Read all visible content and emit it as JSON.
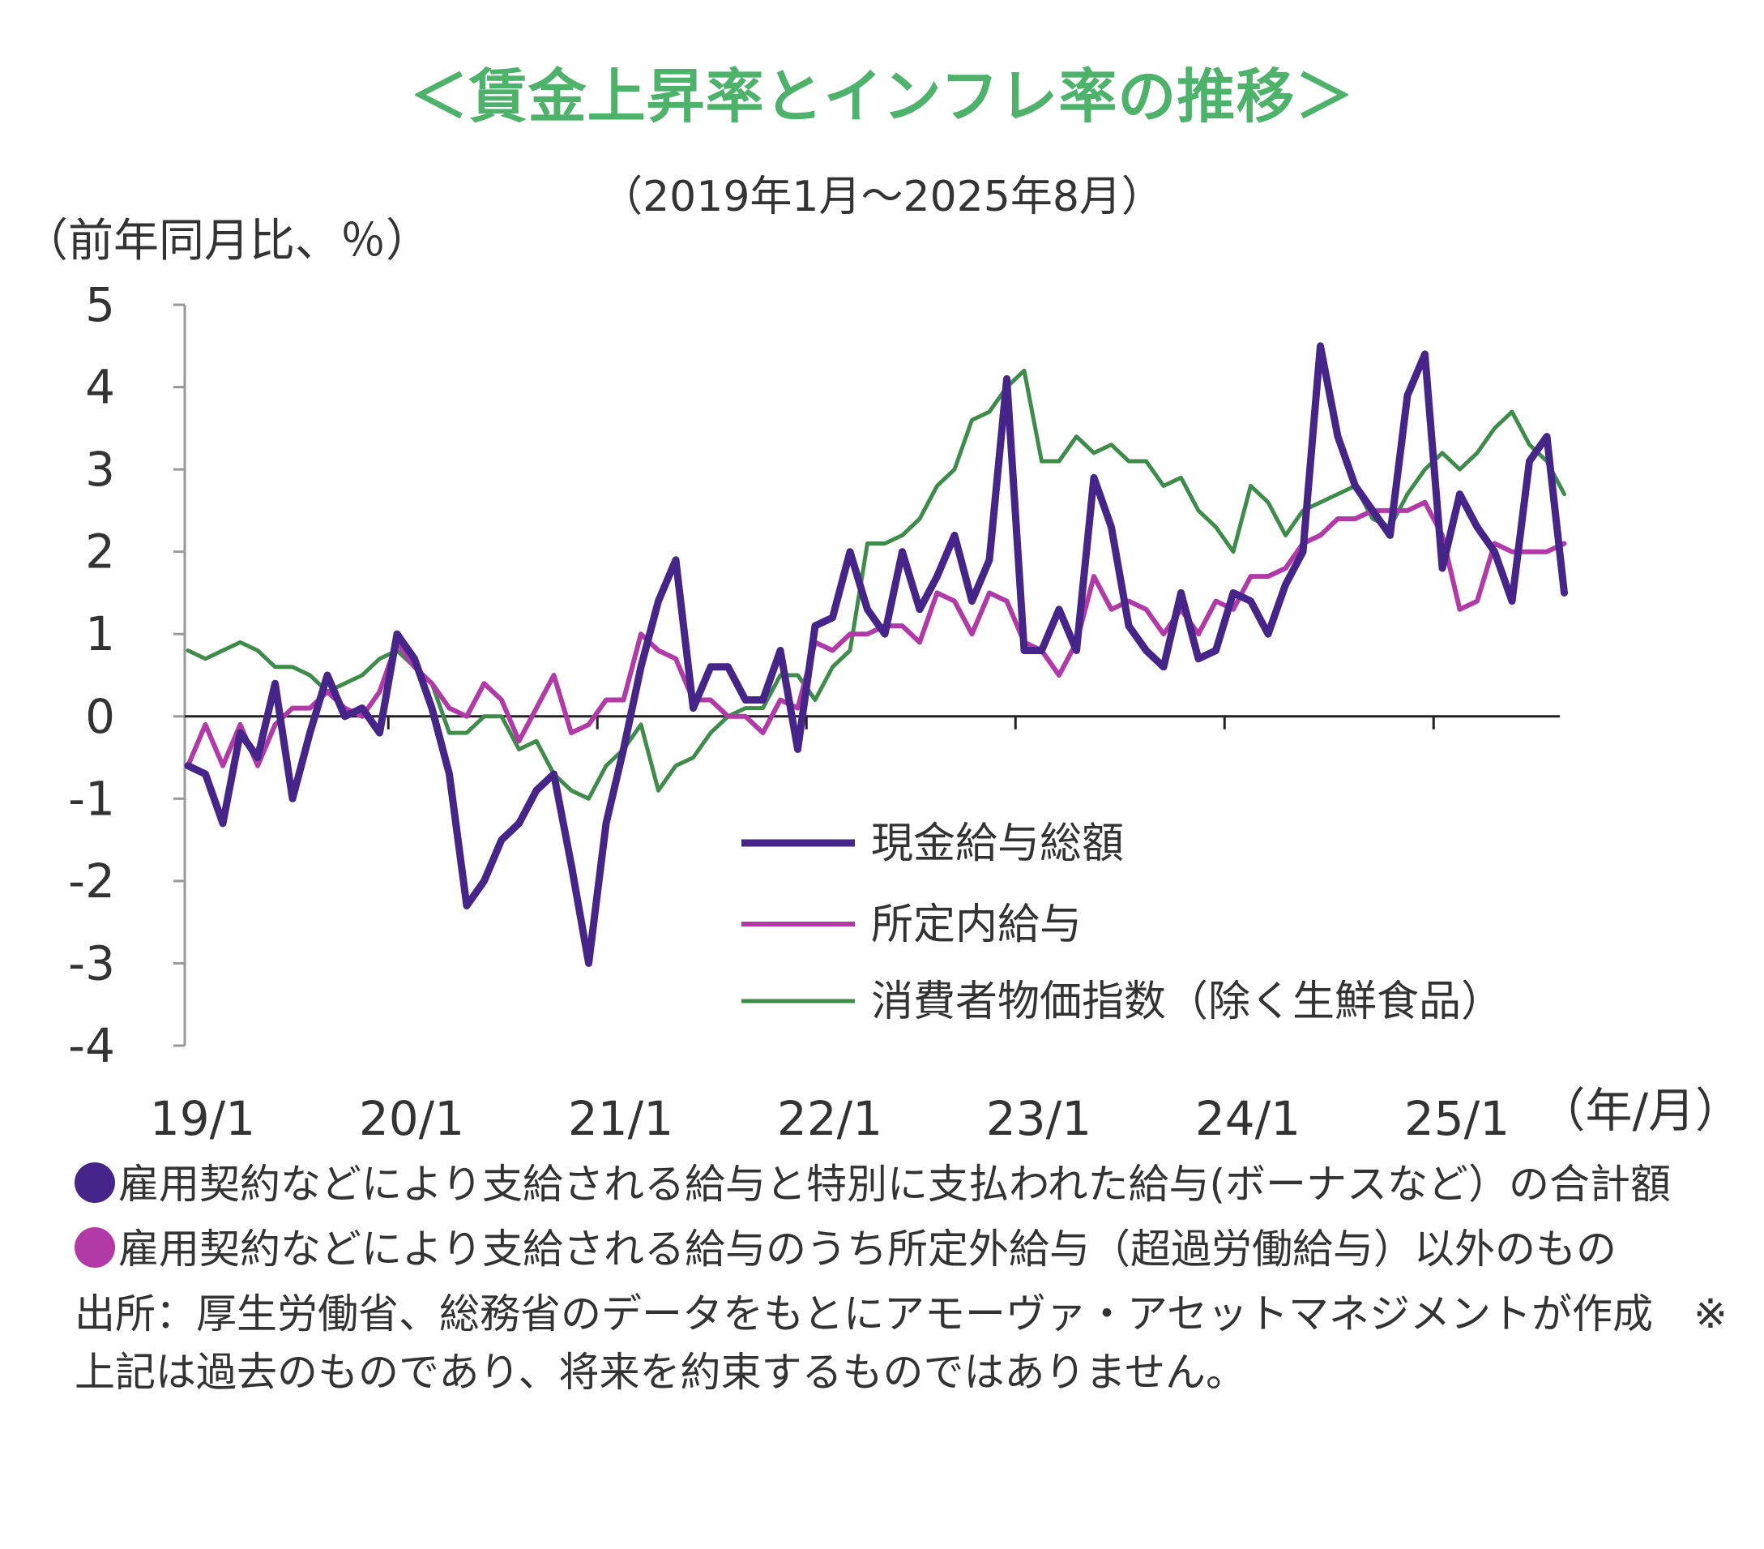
{
  "title": "＜賃金上昇率とインフレ率の推移＞",
  "subtitle": "（2019年1月～2025年8月）",
  "unit_label": "（前年同月比、％）",
  "colors": {
    "title": "#4db36b",
    "wage_total": "#45258a",
    "scheduled": "#b23aa8",
    "cpi": "#3d8c4a",
    "axis": "#999999"
  },
  "chart_data": {
    "type": "line",
    "xlabel": "（年/月）",
    "ylabel": "（前年同月比、％）",
    "ylim": [
      -4,
      5
    ],
    "yticks": [
      "5",
      "4",
      "3",
      "2",
      "1",
      "0",
      "-1",
      "-2",
      "-3",
      "-4"
    ],
    "xtick_labels": [
      "19/1",
      "20/1",
      "21/1",
      "22/1",
      "23/1",
      "24/1",
      "25/1"
    ],
    "x_start": "2019/1",
    "x_end": "2025/8",
    "legend_position": "center-right",
    "series": [
      {
        "name": "現金給与総額",
        "color": "#45258a",
        "values": [
          -0.6,
          -0.7,
          -1.3,
          -0.2,
          -0.5,
          0.4,
          -1.0,
          -0.2,
          0.5,
          0.0,
          0.1,
          -0.2,
          1.0,
          0.7,
          0.1,
          -0.7,
          -2.3,
          -2.0,
          -1.5,
          -1.3,
          -0.9,
          -0.7,
          -1.8,
          -3.0,
          -1.3,
          -0.4,
          0.6,
          1.4,
          1.9,
          0.1,
          0.6,
          0.6,
          0.2,
          0.2,
          0.8,
          -0.4,
          1.1,
          1.2,
          2.0,
          1.3,
          1.0,
          2.0,
          1.3,
          1.7,
          2.2,
          1.4,
          1.9,
          4.1,
          0.8,
          0.8,
          1.3,
          0.8,
          2.9,
          2.3,
          1.1,
          0.8,
          0.6,
          1.5,
          0.7,
          0.8,
          1.5,
          1.4,
          1.0,
          1.6,
          2.0,
          4.5,
          3.4,
          2.8,
          2.5,
          2.2,
          3.9,
          4.4,
          1.8,
          2.7,
          2.3,
          2.0,
          1.4,
          3.1,
          3.4,
          1.5
        ]
      },
      {
        "name": "所定内給与",
        "color": "#b23aa8",
        "values": [
          -0.6,
          -0.1,
          -0.6,
          -0.1,
          -0.6,
          -0.1,
          0.1,
          0.1,
          0.3,
          0.1,
          0.0,
          0.3,
          0.9,
          0.6,
          0.4,
          0.1,
          0.0,
          0.4,
          0.2,
          -0.3,
          0.1,
          0.5,
          -0.2,
          -0.1,
          0.2,
          0.2,
          1.0,
          0.8,
          0.7,
          0.2,
          0.2,
          0.0,
          0.0,
          -0.2,
          0.2,
          0.1,
          0.9,
          0.8,
          1.0,
          1.0,
          1.1,
          1.1,
          0.9,
          1.5,
          1.4,
          1.0,
          1.5,
          1.4,
          0.9,
          0.8,
          0.5,
          0.9,
          1.7,
          1.3,
          1.4,
          1.3,
          1.0,
          1.3,
          1.0,
          1.4,
          1.3,
          1.7,
          1.7,
          1.8,
          2.1,
          2.2,
          2.4,
          2.4,
          2.5,
          2.5,
          2.5,
          2.6,
          2.2,
          1.3,
          1.4,
          2.1,
          2.0,
          2.0,
          2.0,
          2.1
        ]
      },
      {
        "name": "消費者物価指数（除く生鮮食品）",
        "color": "#3d8c4a",
        "values": [
          0.8,
          0.7,
          0.8,
          0.9,
          0.8,
          0.6,
          0.6,
          0.5,
          0.3,
          0.4,
          0.5,
          0.7,
          0.8,
          0.6,
          0.4,
          -0.2,
          -0.2,
          0.0,
          0.0,
          -0.4,
          -0.3,
          -0.7,
          -0.9,
          -1.0,
          -0.6,
          -0.4,
          -0.1,
          -0.9,
          -0.6,
          -0.5,
          -0.2,
          0.0,
          0.1,
          0.1,
          0.5,
          0.5,
          0.2,
          0.6,
          0.8,
          2.1,
          2.1,
          2.2,
          2.4,
          2.8,
          3.0,
          3.6,
          3.7,
          4.0,
          4.2,
          3.1,
          3.1,
          3.4,
          3.2,
          3.3,
          3.1,
          3.1,
          2.8,
          2.9,
          2.5,
          2.3,
          2.0,
          2.8,
          2.6,
          2.2,
          2.5,
          2.6,
          2.7,
          2.8,
          2.4,
          2.3,
          2.7,
          3.0,
          3.2,
          3.0,
          3.2,
          3.5,
          3.7,
          3.3,
          3.1,
          2.7
        ]
      }
    ]
  },
  "notes": {
    "note1": "雇用契約などにより支給される給与と特別に支払われた給与(ボーナスなど）の合計額",
    "note2": "雇用契約などにより支給される給与のうち所定外給与（超過労働給与）以外のもの",
    "source": "出所：厚生労働省、総務省のデータをもとにアモーヴァ・アセットマネジメントが作成　※上記は過去のものであり、将来を約束するものではありません。"
  }
}
